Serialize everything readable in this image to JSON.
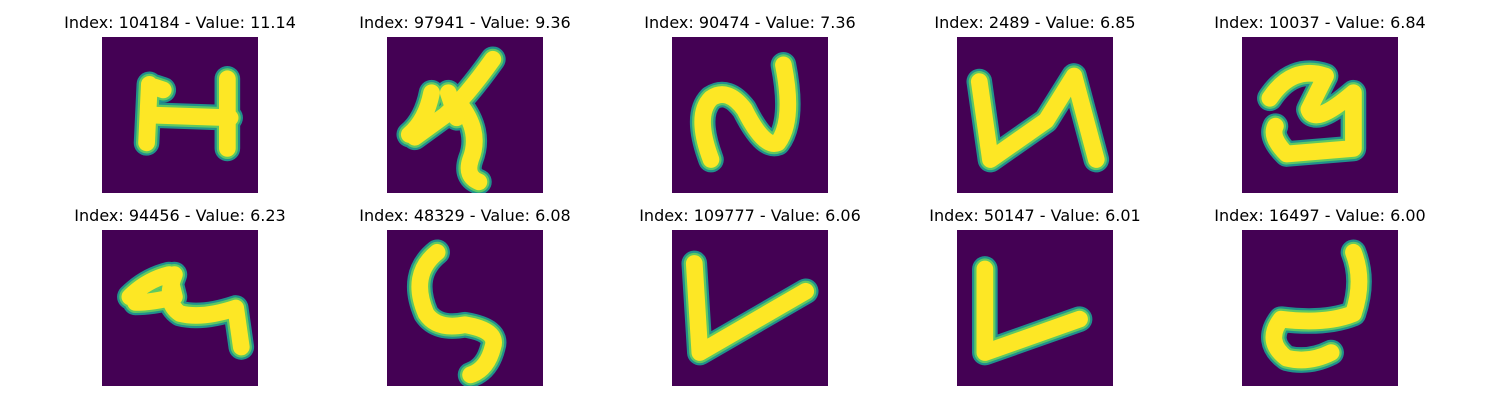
{
  "panels": [
    {
      "title": "Index: 104184 - Value: 11.14",
      "glyph": "H-shaped stroke"
    },
    {
      "title": "Index: 97941 - Value: 9.36",
      "glyph": "looped 4-like stroke"
    },
    {
      "title": "Index: 90474 - Value: 7.36",
      "glyph": "N-like wave"
    },
    {
      "title": "Index: 2489 - Value: 6.85",
      "glyph": "N-like zigzag"
    },
    {
      "title": "Index: 10037 - Value: 6.84",
      "glyph": "thick N-like stroke"
    },
    {
      "title": "Index: 94456 - Value: 6.23",
      "glyph": "looped scribble"
    },
    {
      "title": "Index: 48329 - Value: 6.08",
      "glyph": "S-like curve"
    },
    {
      "title": "Index: 109777 - Value: 6.06",
      "glyph": "V-like stroke"
    },
    {
      "title": "Index: 50147 - Value: 6.01",
      "glyph": "L-shaped stroke"
    },
    {
      "title": "Index: 16497 - Value: 6.00",
      "glyph": "hooked 2-like stroke"
    }
  ],
  "colors": {
    "background": "#440154",
    "edge": "#21918c",
    "mid": "#5ec962",
    "stroke": "#fde725"
  }
}
